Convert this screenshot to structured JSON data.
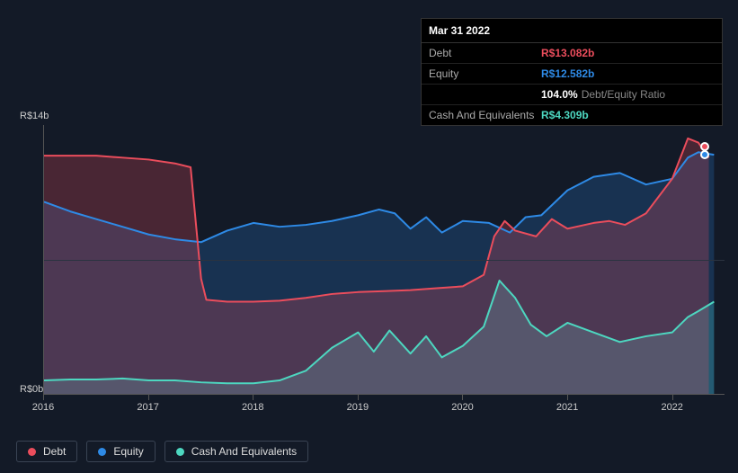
{
  "chart": {
    "type": "area-line",
    "background_color": "#131a27",
    "grid_color": "#2a3340",
    "axis_color": "#555555",
    "text_color": "#cccccc",
    "y": {
      "min": 0,
      "max": 14,
      "ticks": [
        {
          "v": 0,
          "label": "R$0b"
        },
        {
          "v": 14,
          "label": "R$14b"
        }
      ],
      "unit": "R$b",
      "grid_at": [
        7
      ]
    },
    "x": {
      "min": 2016,
      "max": 2022.5,
      "ticks": [
        {
          "v": 2016,
          "label": "2016"
        },
        {
          "v": 2017,
          "label": "2017"
        },
        {
          "v": 2018,
          "label": "2018"
        },
        {
          "v": 2019,
          "label": "2019"
        },
        {
          "v": 2020,
          "label": "2020"
        },
        {
          "v": 2021,
          "label": "2021"
        },
        {
          "v": 2022,
          "label": "2022"
        }
      ]
    },
    "series": [
      {
        "id": "debt",
        "name": "Debt",
        "color": "#eb4d5c",
        "fill": "rgba(235,77,92,0.25)",
        "line_width": 2,
        "points": [
          [
            2016.0,
            12.4
          ],
          [
            2016.25,
            12.4
          ],
          [
            2016.5,
            12.4
          ],
          [
            2016.75,
            12.3
          ],
          [
            2017.0,
            12.2
          ],
          [
            2017.25,
            12.0
          ],
          [
            2017.4,
            11.8
          ],
          [
            2017.5,
            6.0
          ],
          [
            2017.55,
            4.9
          ],
          [
            2017.75,
            4.8
          ],
          [
            2018.0,
            4.8
          ],
          [
            2018.25,
            4.85
          ],
          [
            2018.5,
            5.0
          ],
          [
            2018.75,
            5.2
          ],
          [
            2019.0,
            5.3
          ],
          [
            2019.25,
            5.35
          ],
          [
            2019.5,
            5.4
          ],
          [
            2019.75,
            5.5
          ],
          [
            2020.0,
            5.6
          ],
          [
            2020.2,
            6.2
          ],
          [
            2020.3,
            8.2
          ],
          [
            2020.4,
            9.0
          ],
          [
            2020.5,
            8.5
          ],
          [
            2020.7,
            8.2
          ],
          [
            2020.85,
            9.1
          ],
          [
            2021.0,
            8.6
          ],
          [
            2021.25,
            8.9
          ],
          [
            2021.4,
            9.0
          ],
          [
            2021.55,
            8.8
          ],
          [
            2021.75,
            9.4
          ],
          [
            2022.0,
            11.2
          ],
          [
            2022.15,
            13.3
          ],
          [
            2022.25,
            13.082
          ],
          [
            2022.35,
            12.3
          ]
        ]
      },
      {
        "id": "equity",
        "name": "Equity",
        "color": "#2e8ae6",
        "fill": "rgba(46,138,230,0.22)",
        "line_width": 2,
        "points": [
          [
            2016.0,
            10.0
          ],
          [
            2016.25,
            9.5
          ],
          [
            2016.5,
            9.1
          ],
          [
            2016.75,
            8.7
          ],
          [
            2017.0,
            8.3
          ],
          [
            2017.25,
            8.05
          ],
          [
            2017.5,
            7.9
          ],
          [
            2017.75,
            8.5
          ],
          [
            2018.0,
            8.9
          ],
          [
            2018.25,
            8.7
          ],
          [
            2018.5,
            8.8
          ],
          [
            2018.75,
            9.0
          ],
          [
            2019.0,
            9.3
          ],
          [
            2019.2,
            9.6
          ],
          [
            2019.35,
            9.4
          ],
          [
            2019.5,
            8.6
          ],
          [
            2019.65,
            9.2
          ],
          [
            2019.8,
            8.4
          ],
          [
            2020.0,
            9.0
          ],
          [
            2020.25,
            8.9
          ],
          [
            2020.45,
            8.4
          ],
          [
            2020.6,
            9.2
          ],
          [
            2020.75,
            9.3
          ],
          [
            2021.0,
            10.6
          ],
          [
            2021.25,
            11.3
          ],
          [
            2021.5,
            11.5
          ],
          [
            2021.75,
            10.9
          ],
          [
            2022.0,
            11.2
          ],
          [
            2022.15,
            12.3
          ],
          [
            2022.25,
            12.582
          ],
          [
            2022.4,
            12.45
          ]
        ]
      },
      {
        "id": "cash",
        "name": "Cash And Equivalents",
        "color": "#4dd7c0",
        "fill": "rgba(77,215,192,0.28)",
        "line_width": 2,
        "points": [
          [
            2016.0,
            0.7
          ],
          [
            2016.25,
            0.75
          ],
          [
            2016.5,
            0.75
          ],
          [
            2016.75,
            0.8
          ],
          [
            2017.0,
            0.7
          ],
          [
            2017.25,
            0.7
          ],
          [
            2017.5,
            0.6
          ],
          [
            2017.75,
            0.55
          ],
          [
            2018.0,
            0.55
          ],
          [
            2018.25,
            0.7
          ],
          [
            2018.5,
            1.2
          ],
          [
            2018.75,
            2.4
          ],
          [
            2019.0,
            3.2
          ],
          [
            2019.15,
            2.2
          ],
          [
            2019.3,
            3.3
          ],
          [
            2019.5,
            2.1
          ],
          [
            2019.65,
            3.0
          ],
          [
            2019.8,
            1.9
          ],
          [
            2020.0,
            2.5
          ],
          [
            2020.2,
            3.5
          ],
          [
            2020.35,
            5.9
          ],
          [
            2020.5,
            5.0
          ],
          [
            2020.65,
            3.6
          ],
          [
            2020.8,
            3.0
          ],
          [
            2021.0,
            3.7
          ],
          [
            2021.25,
            3.2
          ],
          [
            2021.5,
            2.7
          ],
          [
            2021.75,
            3.0
          ],
          [
            2022.0,
            3.2
          ],
          [
            2022.15,
            4.0
          ],
          [
            2022.25,
            4.309
          ],
          [
            2022.4,
            4.8
          ]
        ]
      }
    ],
    "highlight_markers": [
      {
        "series": "debt",
        "x": 2022.3,
        "y": 12.9
      },
      {
        "series": "equity",
        "x": 2022.3,
        "y": 12.45
      }
    ]
  },
  "tooltip": {
    "date": "Mar 31 2022",
    "rows": [
      {
        "label": "Debt",
        "value": "R$13.082b",
        "series": "debt"
      },
      {
        "label": "Equity",
        "value": "R$12.582b",
        "series": "equity"
      },
      {
        "label": "",
        "value": "104.0%",
        "extra": "Debt/Equity Ratio",
        "series": null,
        "value_color": "#ffffff"
      },
      {
        "label": "Cash And Equivalents",
        "value": "R$4.309b",
        "series": "cash"
      }
    ]
  },
  "legend": {
    "border_color": "#3a4454",
    "border_radius": 3,
    "items": [
      {
        "label": "Debt",
        "series": "debt"
      },
      {
        "label": "Equity",
        "series": "equity"
      },
      {
        "label": "Cash And Equivalents",
        "series": "cash"
      }
    ]
  }
}
